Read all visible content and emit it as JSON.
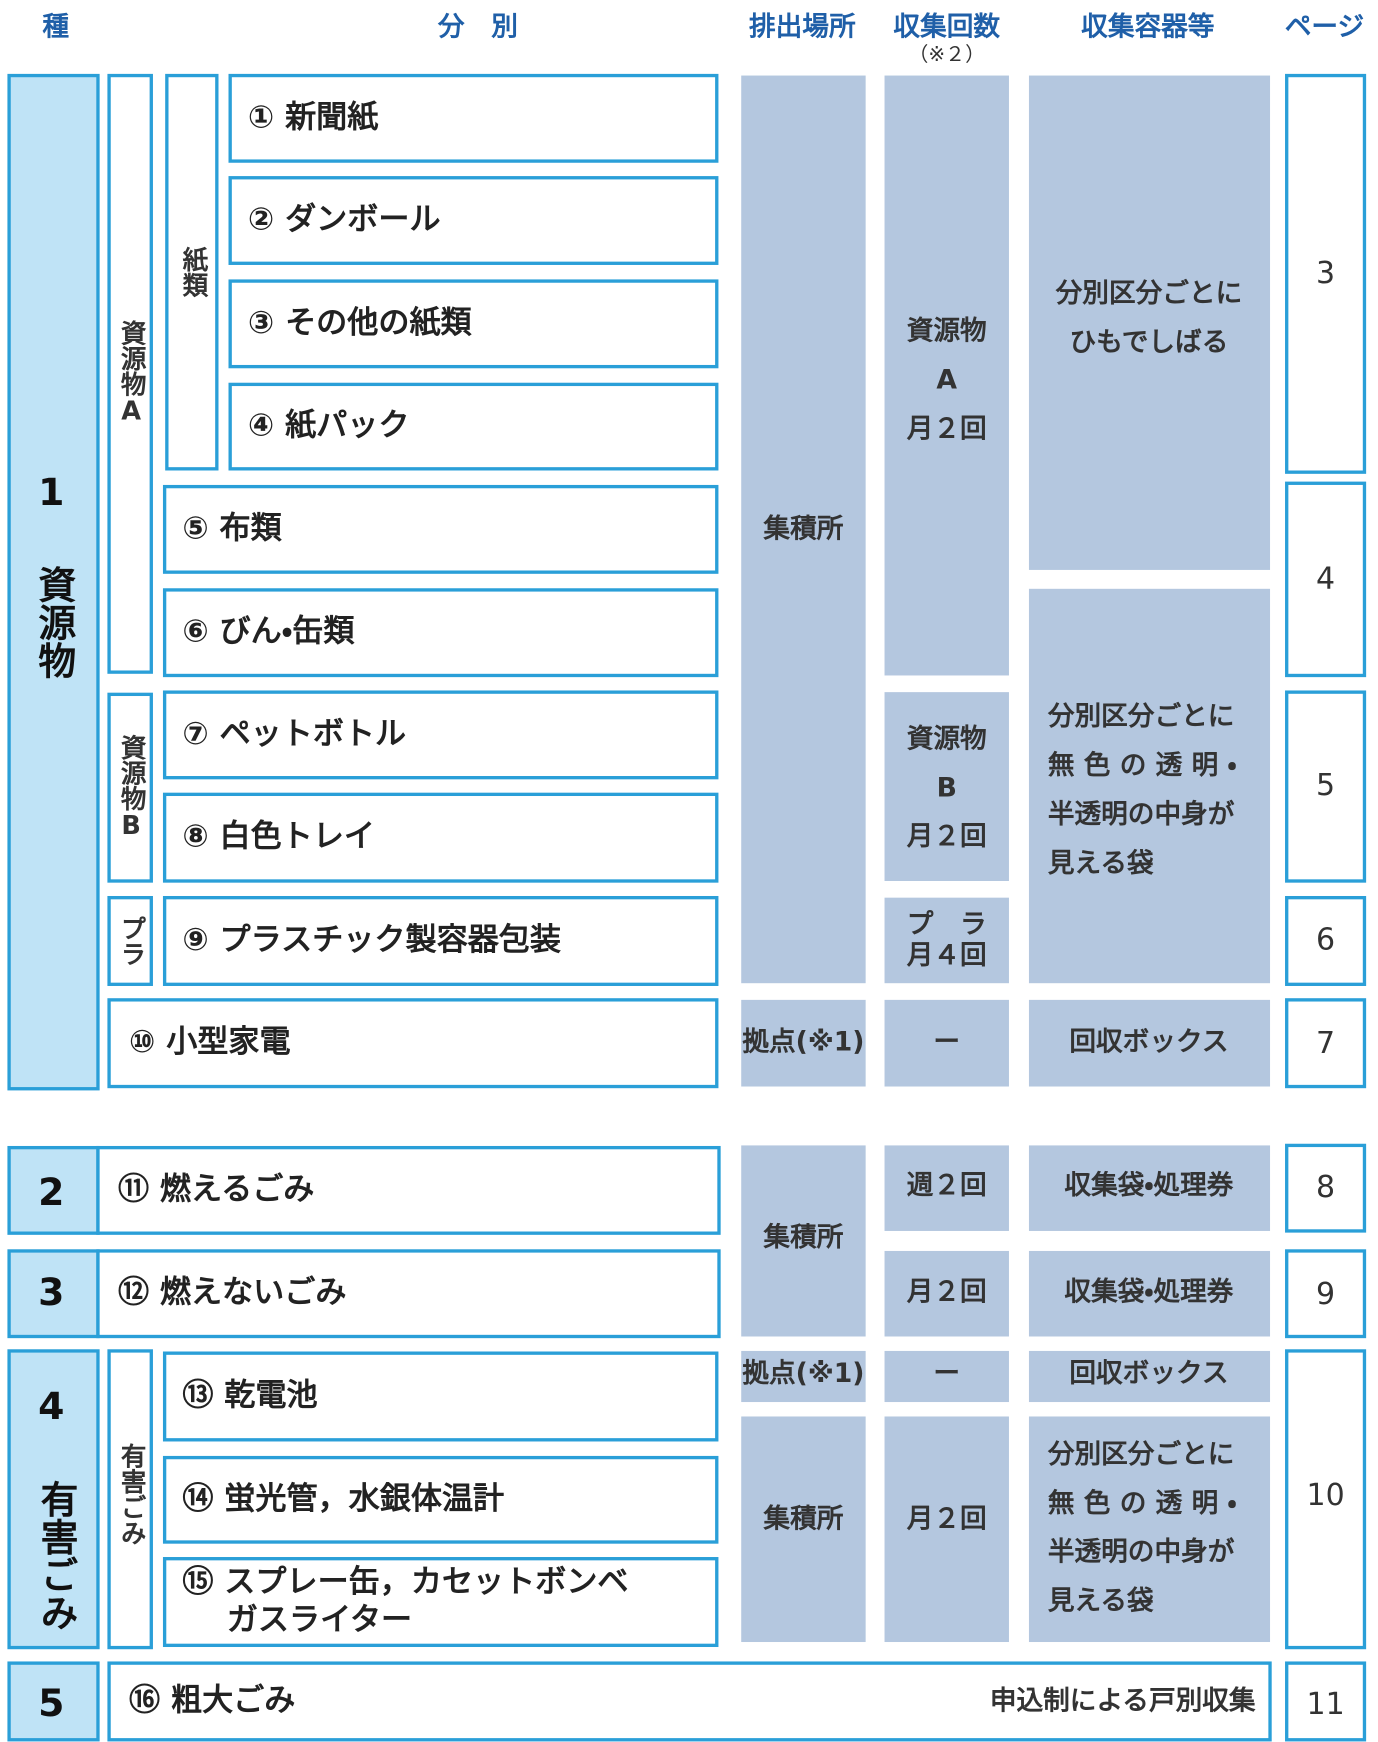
{
  "header": {
    "type": "種",
    "sort": "分　別",
    "place": "排出場所",
    "freq": "収集回数",
    "freq_note": "（※２）",
    "container": "収集容器等",
    "page": "ページ"
  },
  "groups": [
    {
      "number": "1",
      "name": "資源物"
    },
    {
      "number": "2"
    },
    {
      "number": "3"
    },
    {
      "number": "4",
      "name": "有害ごみ"
    },
    {
      "number": "5"
    }
  ],
  "subgroups": [
    "資源物A",
    "紙類",
    "資源物B",
    "プラ",
    "有害ごみ"
  ],
  "items": [
    [
      "① 新聞紙"
    ],
    [
      "② ダンボール"
    ],
    [
      "③ その他の紙類"
    ],
    [
      "④ 紙パック"
    ],
    [
      "⑤ 布類"
    ],
    [
      "⑥ びん・缶類"
    ],
    [
      "⑦ ペットボトル"
    ],
    [
      "⑧ 白色トレイ"
    ],
    [
      "⑨ プラスチック製容器包装"
    ],
    [
      "⑩ 小型家電"
    ],
    [
      "⑪ 燃えるごみ"
    ],
    [
      "⑫ 燃えないごみ"
    ],
    [
      "⑬ 乾電池"
    ],
    [
      "⑭ 蛍光管，水銀体温計"
    ],
    [
      "⑮ スプレー缶，カセットボンベ",
      "ガスライター"
    ],
    [
      "⑯ 粗大ごみ"
    ]
  ],
  "places": [
    "集積所",
    "拠点(※1)",
    "集積所",
    "拠点(※1)",
    "集積所"
  ],
  "freqs": [
    [
      "資源物",
      "A",
      "月２回"
    ],
    [
      "資源物",
      "B",
      "月２回"
    ],
    [
      "プ　ラ",
      "月４回"
    ],
    [
      "ー"
    ],
    [
      "週２回"
    ],
    [
      "月２回"
    ],
    [
      "ー"
    ],
    [
      "月２回"
    ]
  ],
  "containers": [
    [
      "分別区分ごとに",
      "ひもでしばる"
    ],
    [
      "分別区分ごとに",
      "無 色 の 透 明 ・",
      "半透明の中身が",
      "見える袋"
    ],
    [
      "回収ボックス"
    ],
    [
      "収集袋・処理券"
    ],
    [
      "収集袋・処理券"
    ],
    [
      "回収ボックス"
    ],
    [
      "分別区分ごとに",
      "無 色 の 透 明 ・",
      "半透明の中身が",
      "見える袋"
    ]
  ],
  "pages": [
    "3",
    "4",
    "5",
    "6",
    "7",
    "8",
    "9",
    "10",
    "11"
  ],
  "bulky_note": "申込制による戸別収集"
}
